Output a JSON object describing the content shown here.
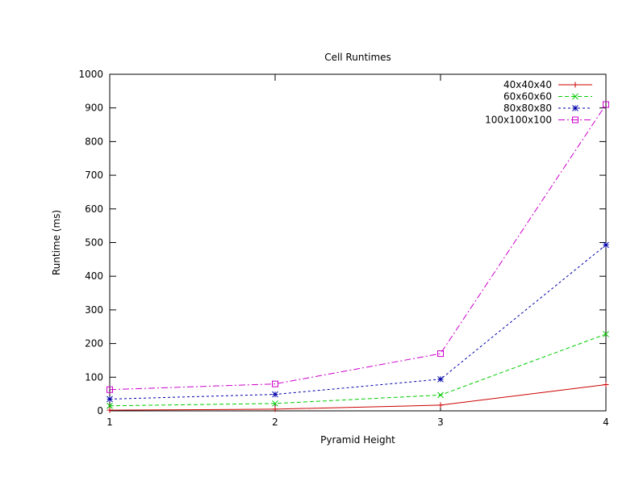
{
  "chart_data": {
    "type": "line",
    "title": "Cell Runtimes",
    "xlabel": "Pyramid Height",
    "ylabel": "Runtime (ms)",
    "x": [
      1,
      2,
      3,
      4
    ],
    "xlim": [
      1,
      4
    ],
    "ylim": [
      0,
      1000
    ],
    "x_ticks": [
      "1",
      "2",
      "3",
      "4"
    ],
    "y_ticks": [
      "0",
      "100",
      "200",
      "300",
      "400",
      "500",
      "600",
      "700",
      "800",
      "900",
      "1000"
    ],
    "grid": false,
    "legend_position": "top-right",
    "series": [
      {
        "name": "40x40x40",
        "values": [
          2,
          5,
          17,
          78
        ],
        "color": "#cc0000",
        "marker": "plus",
        "dash": ""
      },
      {
        "name": "60x60x60",
        "values": [
          15,
          22,
          47,
          228
        ],
        "color": "#00cc00",
        "marker": "cross",
        "dash": "5,3"
      },
      {
        "name": "80x80x80",
        "values": [
          35,
          49,
          94,
          493
        ],
        "color": "#0000aa",
        "marker": "star",
        "dash": "3,3"
      },
      {
        "name": "100x100x100",
        "values": [
          63,
          80,
          170,
          910
        ],
        "color": "#cc00cc",
        "marker": "square",
        "dash": "8,3,2,3"
      }
    ]
  }
}
